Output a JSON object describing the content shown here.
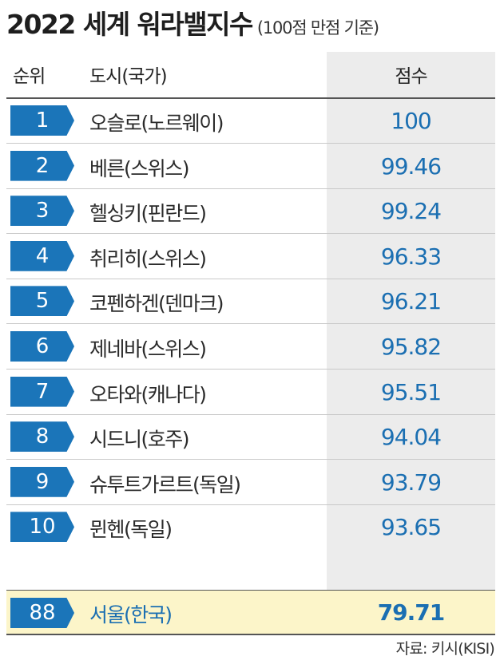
{
  "header": {
    "title": "2022 세계 워라밸지수",
    "subtitle": "(100점 만점 기준)"
  },
  "columns": {
    "rank": "순위",
    "city": "도시(국가)",
    "score": "점수"
  },
  "chart_data": {
    "type": "table",
    "columns": [
      "순위",
      "도시(국가)",
      "점수"
    ],
    "rows": [
      {
        "rank": "1",
        "city": "오슬로(노르웨이)",
        "score": "100"
      },
      {
        "rank": "2",
        "city": "베른(스위스)",
        "score": "99.46"
      },
      {
        "rank": "3",
        "city": "헬싱키(핀란드)",
        "score": "99.24"
      },
      {
        "rank": "4",
        "city": "취리히(스위스)",
        "score": "96.33"
      },
      {
        "rank": "5",
        "city": "코펜하겐(덴마크)",
        "score": "96.21"
      },
      {
        "rank": "6",
        "city": "제네바(스위스)",
        "score": "95.82"
      },
      {
        "rank": "7",
        "city": "오타와(캐나다)",
        "score": "95.51"
      },
      {
        "rank": "8",
        "city": "시드니(호주)",
        "score": "94.04"
      },
      {
        "rank": "9",
        "city": "슈투트가르트(독일)",
        "score": "93.79"
      },
      {
        "rank": "10",
        "city": "뮌헨(독일)",
        "score": "93.65"
      }
    ],
    "highlight": {
      "rank": "88",
      "city": "서울(한국)",
      "score": "79.71"
    }
  },
  "colors": {
    "badge": "#1b75b9",
    "score_text": "#1b6fb2",
    "highlight_bg": "#fcf5c9",
    "score_column_bg": "#ececec"
  },
  "footer": {
    "source": "자료: 키시(KISI)"
  }
}
